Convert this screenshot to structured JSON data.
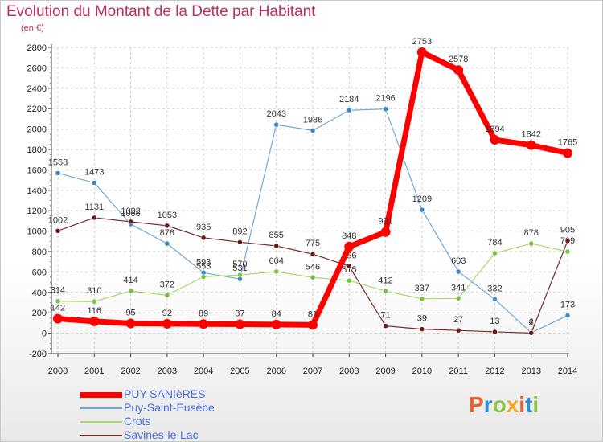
{
  "title": "Evolution du Montant de la Dette par Habitant",
  "subtitle": "(en €)",
  "logo": {
    "text": "Proxiti",
    "colors": [
      "#e8622a",
      "#2a8fd4",
      "#8cc63f",
      "#f5a623",
      "#e8622a",
      "#2a8fd4",
      "#8cc63f"
    ]
  },
  "chart_data": {
    "type": "line",
    "x": [
      "2000",
      "2001",
      "2002",
      "2003",
      "2004",
      "2005",
      "2006",
      "2007",
      "2008",
      "2009",
      "2010",
      "2011",
      "2012",
      "2013",
      "2014"
    ],
    "ylim": [
      -200,
      2800
    ],
    "yticks": [
      -200,
      0,
      200,
      400,
      600,
      800,
      1000,
      1200,
      1400,
      1600,
      1800,
      2000,
      2200,
      2400,
      2600,
      2800
    ],
    "grid": true,
    "legend": "bottom-left",
    "series": [
      {
        "name": "Puy-Saint-Eusèbe",
        "color": "#6fa8dc",
        "marker": "#3d85c6",
        "width": 1.2,
        "r": 3,
        "values": [
          1568,
          1473,
          1068,
          878,
          593,
          531,
          2043,
          1986,
          2184,
          2196,
          1209,
          603,
          332,
          4,
          173
        ],
        "labels": [
          "1568",
          "1473",
          "1068",
          "878",
          "593",
          "531",
          "2043",
          "1986",
          "2184",
          "2196",
          "1209",
          "603",
          "332",
          "4",
          "173"
        ]
      },
      {
        "name": "Crots",
        "color": "#a6d96a",
        "marker": "#7ac143",
        "width": 1.2,
        "r": 3,
        "values": [
          314,
          310,
          414,
          372,
          553,
          570,
          604,
          546,
          515,
          412,
          337,
          341,
          784,
          878,
          799
        ],
        "labels": [
          "314",
          "310",
          "414",
          "372",
          "553",
          "570",
          "604",
          "546",
          "515",
          "412",
          "337",
          "341",
          "784",
          "878",
          "799"
        ]
      },
      {
        "name": "Savines-le-Lac",
        "color": "#7b2a2a",
        "marker": "#6b1a1a",
        "width": 1.2,
        "r": 3,
        "values": [
          1002,
          1131,
          1092,
          1053,
          935,
          892,
          855,
          775,
          656,
          71,
          39,
          27,
          13,
          2,
          905
        ],
        "labels": [
          "1002",
          "1131",
          "1092",
          "1053",
          "935",
          "892",
          "855",
          "775",
          "656",
          "71",
          "39",
          "27",
          "13",
          "2",
          "905"
        ]
      },
      {
        "name": "PUY-SANIèRES",
        "color": "#ff0000",
        "marker": "#ff0000",
        "width": 7,
        "r": 6,
        "values": [
          142,
          116,
          95,
          92,
          89,
          87,
          84,
          81,
          848,
          991,
          2753,
          2578,
          1894,
          1842,
          1765
        ],
        "labels": [
          "142",
          "116",
          "95",
          "92",
          "89",
          "87",
          "84",
          "81",
          "848",
          "991",
          "2753",
          "2578",
          "1894",
          "1842",
          "1765"
        ]
      }
    ],
    "legend_order": [
      "PUY-SANIèRES",
      "Puy-Saint-Eusèbe",
      "Crots",
      "Savines-le-Lac"
    ]
  }
}
